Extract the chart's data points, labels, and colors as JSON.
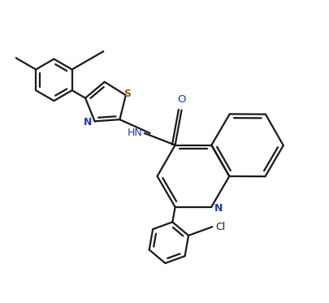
{
  "bg": "#ffffff",
  "lc": "#1a1a1a",
  "nc": "#1e3caa",
  "sc": "#8b6400",
  "oc": "#1e3caa",
  "lw": 1.6,
  "figsize": [
    4.05,
    3.73
  ],
  "dpi": 100,
  "xlim": [
    -1.2,
    5.8
  ],
  "ylim": [
    -3.8,
    3.2
  ]
}
